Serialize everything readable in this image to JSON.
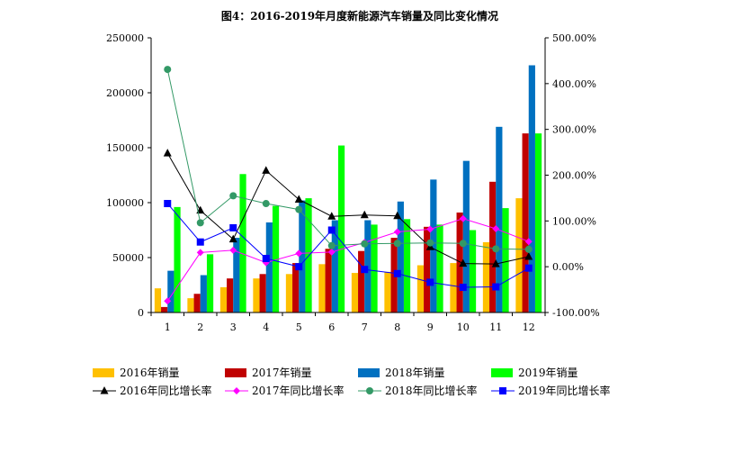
{
  "chart_data": {
    "type": "bar",
    "title": "图4：2016-2019年月度新能源汽车销量及同比变化情况",
    "categories": [
      "1",
      "2",
      "3",
      "4",
      "5",
      "6",
      "7",
      "8",
      "9",
      "10",
      "11",
      "12"
    ],
    "y_left": {
      "min": 0,
      "max": 250000,
      "step": 50000,
      "tick_labels": [
        "0",
        "50000",
        "100000",
        "150000",
        "200000",
        "250000"
      ]
    },
    "y_right": {
      "min": -100,
      "max": 500,
      "step": 100,
      "tick_labels": [
        "-100.00%",
        "0.00%",
        "100.00%",
        "200.00%",
        "300.00%",
        "400.00%",
        "500.00%"
      ]
    },
    "bar_series": [
      {
        "name": "2016年销量",
        "color": "#FFC000",
        "values": [
          22000,
          13000,
          23000,
          31000,
          35000,
          44000,
          36000,
          37000,
          43000,
          45000,
          64000,
          104000
        ]
      },
      {
        "name": "2017年销量",
        "color": "#C00000",
        "values": [
          5000,
          17000,
          31000,
          35000,
          45000,
          58000,
          56000,
          68000,
          78000,
          91000,
          119000,
          163000
        ]
      },
      {
        "name": "2018年销量",
        "color": "#0070C0",
        "values": [
          38000,
          34000,
          68000,
          82000,
          102000,
          84000,
          84000,
          101000,
          121000,
          138000,
          169000,
          225000
        ]
      },
      {
        "name": "2019年销量",
        "color": "#00FF00",
        "values": [
          96000,
          53000,
          126000,
          97000,
          104000,
          152000,
          80000,
          85000,
          80000,
          75000,
          95000,
          163000
        ]
      }
    ],
    "line_series": [
      {
        "name": "2016年同比增长率",
        "color": "#000000",
        "marker": "triangle",
        "values": [
          248,
          123,
          60,
          210,
          147,
          110,
          113,
          111,
          43,
          7,
          6,
          22
        ]
      },
      {
        "name": "2017年同比增长率",
        "color": "#FF00FF",
        "marker": "diamond",
        "values": [
          -75,
          31,
          36,
          9,
          29,
          32,
          53,
          76,
          82,
          105,
          83,
          55
        ]
      },
      {
        "name": "2018年同比增长率",
        "color": "#339966",
        "marker": "circle",
        "values": [
          431,
          96,
          155,
          138,
          125,
          46,
          50,
          51,
          52,
          51,
          39,
          38
        ]
      },
      {
        "name": "2019年同比增长率",
        "color": "#0000FF",
        "marker": "square",
        "values": [
          138,
          54,
          85,
          18,
          0,
          80,
          -6,
          -15,
          -34,
          -45,
          -44,
          -3
        ]
      }
    ],
    "legend_position": "bottom",
    "grid": false
  }
}
